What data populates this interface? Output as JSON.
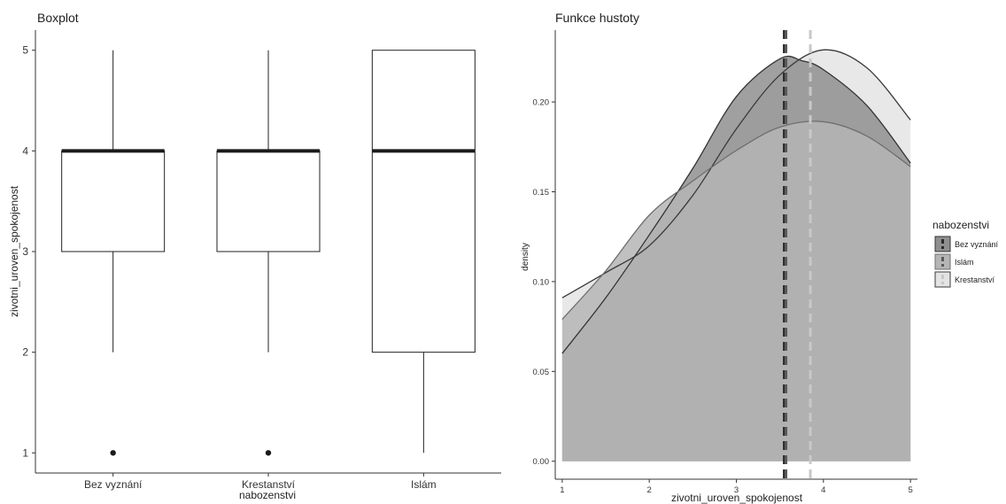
{
  "chart_data": [
    {
      "type": "boxplot",
      "title": "Boxplot",
      "xlabel": "nabozenstvi",
      "ylabel": "zivotni_uroven_spokojenost",
      "ylim": [
        0.8,
        5.2
      ],
      "yticks": [
        "1",
        "2",
        "3",
        "4",
        "5"
      ],
      "categories": [
        "Bez vyznání",
        "Krestanství",
        "Islám"
      ],
      "boxes": [
        {
          "name": "Bez vyznání",
          "min": 2,
          "q1": 3,
          "median": 4,
          "q3": 4,
          "max": 5,
          "outliers": [
            1
          ]
        },
        {
          "name": "Krestanství",
          "min": 2,
          "q1": 3,
          "median": 4,
          "q3": 4,
          "max": 5,
          "outliers": [
            1
          ]
        },
        {
          "name": "Islám",
          "min": 1,
          "q1": 2,
          "median": 4,
          "q3": 5,
          "max": 5,
          "outliers": []
        }
      ],
      "grid": false
    },
    {
      "type": "area",
      "title": "Funkce hustoty",
      "xlabel": "zivotni_uroven_spokojenost",
      "ylabel": "density",
      "xlim": [
        0.92,
        5.08
      ],
      "ylim": [
        -0.01,
        0.24
      ],
      "xticks": [
        "1",
        "2",
        "3",
        "4",
        "5"
      ],
      "yticks": [
        "0.00",
        "0.05",
        "0.10",
        "0.15",
        "0.20"
      ],
      "legend_title": "nabozenstvi",
      "legend_position": "right",
      "grid": false,
      "series": [
        {
          "name": "Bez vyznání",
          "fill": "#8f8f8f",
          "line": "#333333",
          "mean": 3.55,
          "x": [
            1.0,
            1.5,
            2.0,
            2.5,
            3.0,
            3.5,
            3.75,
            4.0,
            4.5,
            5.0
          ],
          "y": [
            0.06,
            0.091,
            0.126,
            0.163,
            0.203,
            0.224,
            0.223,
            0.218,
            0.198,
            0.166
          ]
        },
        {
          "name": "Islám",
          "fill": "#b5b5b5",
          "line": "#6e6e6e",
          "mean": 3.57,
          "x": [
            1.0,
            1.5,
            2.0,
            2.5,
            3.0,
            3.5,
            4.0,
            4.5,
            5.0
          ],
          "y": [
            0.079,
            0.106,
            0.137,
            0.156,
            0.173,
            0.186,
            0.189,
            0.181,
            0.164
          ]
        },
        {
          "name": "Krestanství",
          "fill": "#e4e4e4",
          "line": "#3a3a3a",
          "mean": 3.85,
          "x": [
            1.0,
            1.5,
            2.0,
            2.5,
            3.0,
            3.5,
            4.0,
            4.5,
            5.0
          ],
          "y": [
            0.091,
            0.105,
            0.12,
            0.148,
            0.185,
            0.215,
            0.229,
            0.219,
            0.19
          ]
        }
      ]
    }
  ]
}
